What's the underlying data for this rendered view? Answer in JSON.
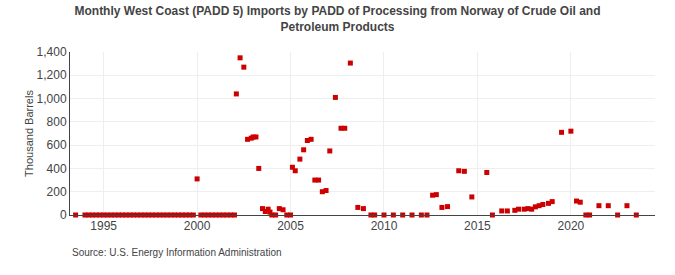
{
  "chart_data": {
    "type": "scatter",
    "title": "Monthly West Coast (PADD 5) Imports by PADD of Processing from Norway of Crude Oil and\nPetroleum Products",
    "ylabel": "Thousand Barrels",
    "annotations": [
      "Source: U.S. Energy Information Administration"
    ],
    "color": "#cc0000",
    "marker": "square",
    "grid": true,
    "xlim": [
      1993.2,
      2024.5
    ],
    "ylim": [
      0,
      1400
    ],
    "xticks": [
      1995,
      2000,
      2005,
      2010,
      2015,
      2020
    ],
    "yticks": [
      0,
      200,
      400,
      600,
      800,
      {
        "value": 1000,
        "label": "1,000"
      },
      {
        "value": 1200,
        "label": "1,200"
      },
      {
        "value": 1400,
        "label": "1,400"
      }
    ],
    "x": [
      1993.5,
      1994.0,
      1994.2,
      1994.4,
      1994.6,
      1994.8,
      1995.0,
      1995.2,
      1995.4,
      1995.6,
      1995.8,
      1996.0,
      1996.2,
      1996.4,
      1996.6,
      1996.8,
      1997.0,
      1997.2,
      1997.4,
      1997.6,
      1997.8,
      1998.0,
      1998.2,
      1998.4,
      1998.6,
      1998.8,
      1999.0,
      1999.2,
      1999.4,
      1999.6,
      1999.8,
      2000.0,
      2000.2,
      2000.4,
      2000.6,
      2000.8,
      2001.0,
      2001.2,
      2001.4,
      2001.6,
      2001.8,
      2002.0,
      2002.1,
      2002.3,
      2002.5,
      2002.7,
      2002.9,
      2003.0,
      2003.15,
      2003.3,
      2003.5,
      2003.65,
      2003.8,
      2003.9,
      2004.0,
      2004.2,
      2004.4,
      2004.6,
      2004.8,
      2005.0,
      2005.1,
      2005.25,
      2005.5,
      2005.7,
      2005.9,
      2006.1,
      2006.3,
      2006.5,
      2006.7,
      2006.9,
      2007.1,
      2007.4,
      2007.7,
      2007.9,
      2008.2,
      2008.6,
      2008.9,
      2009.3,
      2009.5,
      2010.0,
      2010.5,
      2011.0,
      2011.5,
      2012.0,
      2012.3,
      2012.6,
      2012.8,
      2013.1,
      2013.4,
      2014.0,
      2014.3,
      2014.7,
      2015.5,
      2015.8,
      2016.3,
      2016.6,
      2017.0,
      2017.2,
      2017.5,
      2017.7,
      2017.9,
      2018.1,
      2018.3,
      2018.5,
      2018.8,
      2019.0,
      2019.5,
      2020.0,
      2020.3,
      2020.5,
      2020.8,
      2021.0,
      2021.5,
      2022.0,
      2022.5,
      2023.0,
      2023.5
    ],
    "values": [
      0,
      0,
      0,
      0,
      0,
      0,
      0,
      0,
      0,
      0,
      0,
      0,
      0,
      0,
      0,
      0,
      0,
      0,
      0,
      0,
      0,
      0,
      0,
      0,
      0,
      0,
      0,
      0,
      0,
      0,
      0,
      310,
      0,
      0,
      0,
      0,
      0,
      0,
      0,
      0,
      0,
      0,
      1040,
      1350,
      1270,
      650,
      660,
      670,
      670,
      400,
      55,
      30,
      50,
      25,
      0,
      0,
      55,
      45,
      0,
      0,
      410,
      380,
      480,
      560,
      640,
      650,
      300,
      300,
      200,
      210,
      550,
      1010,
      745,
      745,
      1305,
      65,
      55,
      0,
      0,
      0,
      0,
      0,
      0,
      0,
      0,
      170,
      175,
      65,
      72,
      380,
      375,
      155,
      365,
      0,
      35,
      35,
      40,
      50,
      50,
      55,
      50,
      70,
      80,
      90,
      100,
      115,
      710,
      720,
      120,
      110,
      0,
      0,
      80,
      80,
      0,
      80,
      0
    ]
  }
}
